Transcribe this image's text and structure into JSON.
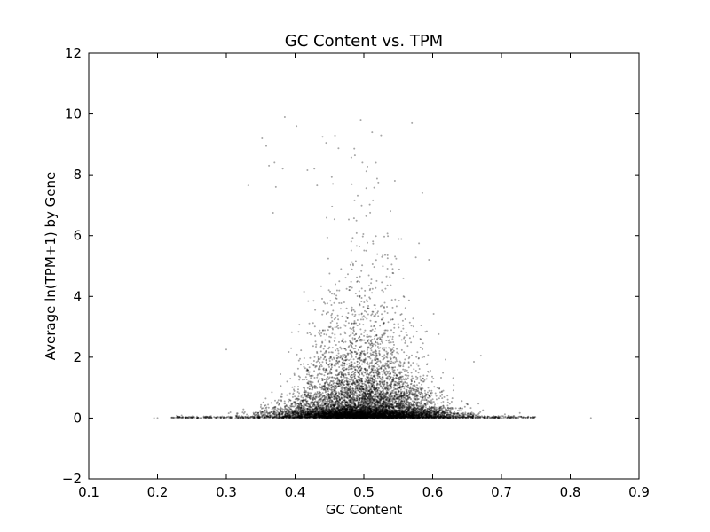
{
  "chart_data": {
    "type": "scatter",
    "title": "GC Content vs. TPM",
    "xlabel": "GC Content",
    "ylabel": "Average ln(TPM+1) by Gene",
    "xlim": [
      0.1,
      0.9
    ],
    "ylim": [
      -2,
      12
    ],
    "xticks": [
      "0.1",
      "0.2",
      "0.3",
      "0.4",
      "0.5",
      "0.6",
      "0.7",
      "0.8",
      "0.9"
    ],
    "yticks": [
      "−2",
      "0",
      "2",
      "4",
      "6",
      "8",
      "10",
      "12"
    ],
    "grid": false,
    "legend": "none",
    "marker_color": "#000000",
    "marker_opacity": 0.35,
    "distribution": {
      "x_center": 0.5,
      "x_spread": 0.06,
      "baseline_y": 0,
      "baseline_x_range": [
        0.22,
        0.75
      ],
      "y_max_observed": 9.9
    },
    "points": [
      {
        "x": 0.195,
        "y": 0.0
      },
      {
        "x": 0.2,
        "y": 0.0
      },
      {
        "x": 0.228,
        "y": 0.08
      },
      {
        "x": 0.3,
        "y": 2.25
      },
      {
        "x": 0.332,
        "y": 7.65
      },
      {
        "x": 0.352,
        "y": 9.2
      },
      {
        "x": 0.358,
        "y": 8.95
      },
      {
        "x": 0.362,
        "y": 8.3
      },
      {
        "x": 0.368,
        "y": 6.75
      },
      {
        "x": 0.37,
        "y": 8.4
      },
      {
        "x": 0.372,
        "y": 7.6
      },
      {
        "x": 0.382,
        "y": 8.2
      },
      {
        "x": 0.385,
        "y": 9.9
      },
      {
        "x": 0.402,
        "y": 9.6
      },
      {
        "x": 0.418,
        "y": 8.15
      },
      {
        "x": 0.428,
        "y": 8.2
      },
      {
        "x": 0.432,
        "y": 7.65
      },
      {
        "x": 0.44,
        "y": 9.25
      },
      {
        "x": 0.455,
        "y": 7.7
      },
      {
        "x": 0.498,
        "y": 8.4
      },
      {
        "x": 0.512,
        "y": 9.4
      },
      {
        "x": 0.525,
        "y": 9.3
      },
      {
        "x": 0.545,
        "y": 7.8
      },
      {
        "x": 0.57,
        "y": 9.7
      },
      {
        "x": 0.585,
        "y": 7.4
      },
      {
        "x": 0.66,
        "y": 1.85
      },
      {
        "x": 0.67,
        "y": 2.05
      },
      {
        "x": 0.705,
        "y": 0.12
      },
      {
        "x": 0.745,
        "y": 0.0
      },
      {
        "x": 0.83,
        "y": 0.0
      }
    ]
  }
}
